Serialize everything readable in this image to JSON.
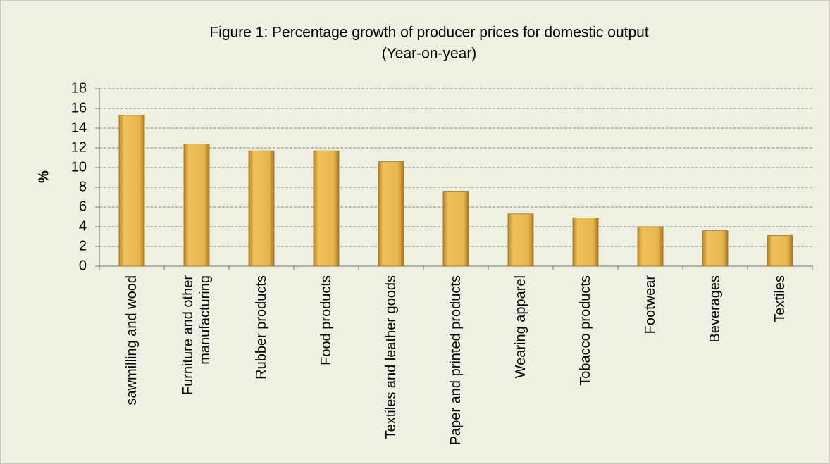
{
  "chart_data": {
    "type": "bar",
    "title": "Figure 1: Percentage growth of producer prices for domestic output",
    "subtitle": "(Year-on-year)",
    "y_label": "%",
    "categories": [
      "sawmilling and wood",
      "Furniture and other manufacturing",
      "Rubber products",
      "Food products",
      "Textiles and leather goods",
      "Paper and printed products",
      "Wearing apparel",
      "Tobacco products",
      "Footwear",
      "Beverages",
      "Textiles"
    ],
    "values": [
      15.3,
      12.4,
      11.7,
      11.7,
      10.6,
      7.6,
      5.3,
      4.9,
      4.0,
      3.6,
      3.1
    ],
    "color": "#e3b04e",
    "ylim": [
      0,
      18
    ],
    "yticks": [
      0,
      2,
      4,
      6,
      8,
      10,
      12,
      14,
      16,
      18
    ],
    "grid": true
  }
}
